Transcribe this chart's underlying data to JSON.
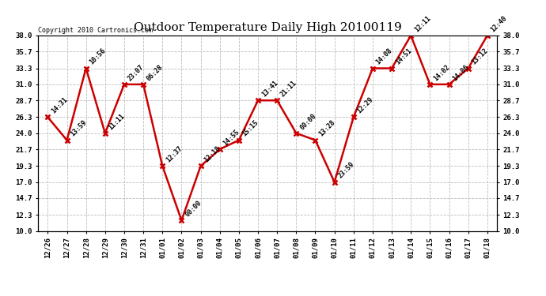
{
  "title": "Outdoor Temperature Daily High 20100119",
  "copyright": "Copyright 2010 Cartronics.com",
  "x_labels": [
    "12/26",
    "12/27",
    "12/28",
    "12/29",
    "12/30",
    "12/31",
    "01/01",
    "01/02",
    "01/03",
    "01/04",
    "01/05",
    "01/06",
    "01/07",
    "01/08",
    "01/09",
    "01/10",
    "01/11",
    "01/12",
    "01/13",
    "01/14",
    "01/15",
    "01/16",
    "01/17",
    "01/18"
  ],
  "y_values": [
    26.3,
    23.0,
    33.3,
    24.0,
    31.0,
    31.0,
    19.3,
    11.5,
    19.3,
    21.7,
    23.0,
    28.7,
    28.7,
    24.0,
    23.0,
    17.0,
    26.3,
    33.3,
    33.3,
    38.0,
    31.0,
    31.0,
    33.3,
    38.0
  ],
  "time_labels": [
    "14:31",
    "13:59",
    "10:56",
    "11:11",
    "23:07",
    "06:28",
    "12:37",
    "00:00",
    "12:18",
    "14:55",
    "15:15",
    "13:41",
    "21:11",
    "00:00",
    "13:28",
    "23:59",
    "12:29",
    "14:08",
    "14:51",
    "12:11",
    "14:02",
    "14:06",
    "13:12",
    "12:40"
  ],
  "ylim": [
    10.0,
    38.0
  ],
  "yticks": [
    10.0,
    12.3,
    14.7,
    17.0,
    19.3,
    21.7,
    24.0,
    26.3,
    28.7,
    31.0,
    33.3,
    35.7,
    38.0
  ],
  "line_color": "#cc0000",
  "marker_color": "#cc0000",
  "bg_color": "#ffffff",
  "grid_color": "#bbbbbb",
  "title_fontsize": 11,
  "label_fontsize": 6.5,
  "annotation_fontsize": 6.0,
  "copyright_fontsize": 6.0,
  "figwidth": 6.9,
  "figheight": 3.75,
  "dpi": 100
}
